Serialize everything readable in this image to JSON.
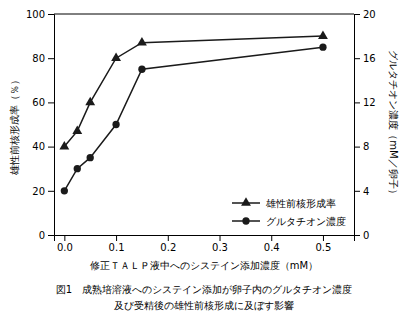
{
  "chart_data": {
    "type": "line",
    "xlabel": "修正ＴＡＬＰ液中へのシステイン添加濃度（mM）",
    "ylabel": "雄性前核形成率（％）",
    "y2label": "グルタチオン濃度（mM／卵子）",
    "annotations": [
      "図1　成熟培溶液へのシステイン添加が卵子内のグルタチオン濃度",
      "及び受精後の雄性前核形成に及ぼす影響"
    ],
    "x": [
      0,
      0.025,
      0.05,
      0.1,
      0.15,
      0.5
    ],
    "series": [
      {
        "name": "雄性前核形成率",
        "color": "#1a1a1a",
        "marker": "triangle",
        "values": [
          40,
          47,
          60,
          80,
          87,
          90
        ]
      },
      {
        "name": "グルタチオン濃度",
        "color": "#1a1a1a",
        "marker": "circle",
        "axis": "y2",
        "values": [
          4,
          6,
          7,
          10,
          15,
          17
        ]
      }
    ],
    "xlim": [
      -0.02,
      0.56
    ],
    "xticks": [
      {
        "value": 0,
        "label": "0.0"
      },
      0.1,
      0.2,
      0.3,
      0.4,
      0.5
    ],
    "ylim": [
      0,
      100
    ],
    "yticks": [
      0,
      20,
      40,
      60,
      80,
      100
    ],
    "y2lim": [
      0,
      20
    ],
    "y2ticks": [
      0,
      4,
      8,
      12,
      16,
      20
    ],
    "legend": "lower right",
    "grid": false
  }
}
